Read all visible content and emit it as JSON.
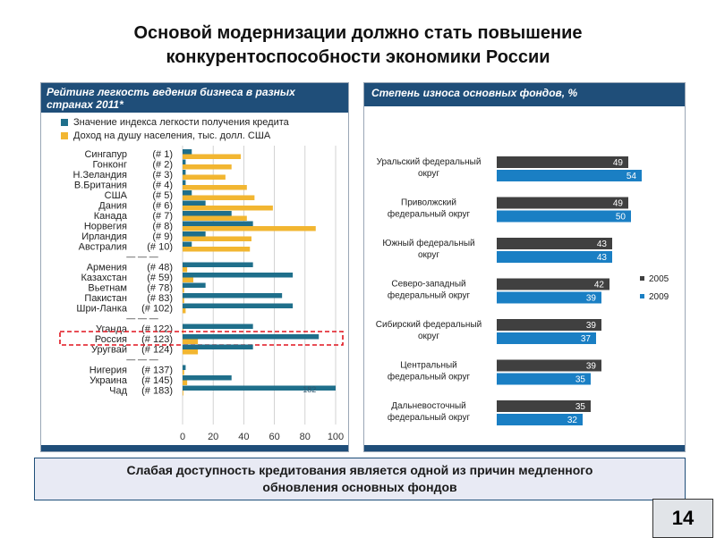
{
  "title_line1": "Основой модернизации должно стать повышение",
  "title_line2": "конкурентоспособности экономики России",
  "subtitle_line1": "Слабая доступность кредитования является одной из причин медленного",
  "subtitle_line2": "обновления основных фондов",
  "page_number": "14",
  "colors": {
    "blue": "#1f6f8b",
    "gold": "#f2b631",
    "dark": "#404040",
    "bright_blue": "#1a7fc4",
    "highlight": "#e0141e"
  },
  "chart_data": [
    {
      "type": "bar",
      "orientation": "horizontal",
      "title_line1": "Рейтинг легкость ведения бизнеса в разных",
      "title_line2": "странах 2011*",
      "xlim": [
        0,
        100
      ],
      "xticks": [
        "0",
        "20",
        "40",
        "60",
        "80",
        "100"
      ],
      "legend": [
        "Значение индекса легкости получения кредита",
        "Доход на душу населения, тыс. долл. США"
      ],
      "separator_label": "— — —",
      "groups": [
        [
          {
            "country": "Сингапур",
            "rank": "(# 1)",
            "credit": 6,
            "income": 38
          },
          {
            "country": "Гонконг",
            "rank": "(# 2)",
            "credit": 2,
            "income": 32
          },
          {
            "country": "Н.Зеландия",
            "rank": "(# 3)",
            "credit": 2,
            "income": 28
          },
          {
            "country": "В.Британия",
            "rank": "(# 4)",
            "credit": 2,
            "income": 42
          },
          {
            "country": "США",
            "rank": "(# 5)",
            "credit": 6,
            "income": 47
          },
          {
            "country": "Дания",
            "rank": "(# 6)",
            "credit": 15,
            "income": 59
          },
          {
            "country": "Канада",
            "rank": "(# 7)",
            "credit": 32,
            "income": 42
          },
          {
            "country": "Норвегия",
            "rank": "(# 8)",
            "credit": 46,
            "income": 87
          },
          {
            "country": "Ирландия",
            "rank": "(# 9)",
            "credit": 15,
            "income": 45
          },
          {
            "country": "Австралия",
            "rank": "(# 10)",
            "credit": 6,
            "income": 44
          }
        ],
        [
          {
            "country": "Армения",
            "rank": "(# 48)",
            "credit": 46,
            "income": 3
          },
          {
            "country": "Казахстан",
            "rank": "(# 59)",
            "credit": 72,
            "income": 7
          },
          {
            "country": "Вьетнам",
            "rank": "(# 78)",
            "credit": 15,
            "income": 1
          },
          {
            "country": "Пакистан",
            "rank": "(# 83)",
            "credit": 65,
            "income": 1
          },
          {
            "country": "Шри-Ланка",
            "rank": "(# 102)",
            "credit": 72,
            "income": 2
          }
        ],
        [
          {
            "country": "Уганда",
            "rank": "(# 122)",
            "credit": 46,
            "income": 0.5
          },
          {
            "country": "Россия",
            "rank": "(# 123)",
            "credit": 89,
            "income": 10,
            "highlight": true
          },
          {
            "country": "Уругвай",
            "rank": "(# 124)",
            "credit": 46,
            "income": 10
          }
        ],
        [
          {
            "country": "Нигерия",
            "rank": "(# 137)",
            "credit": 2,
            "income": 1
          },
          {
            "country": "Украина",
            "rank": "(# 145)",
            "credit": 32,
            "income": 3
          },
          {
            "country": "Чад",
            "rank": "(# 183)",
            "credit": 100,
            "income": 0.5
          }
        ]
      ],
      "annotation": "182"
    },
    {
      "type": "bar",
      "orientation": "horizontal",
      "title": "Степень износа основных фондов, %",
      "xlim": [
        0,
        60
      ],
      "series": [
        {
          "name": "2005"
        },
        {
          "name": "2009"
        }
      ],
      "categories": [
        {
          "line1": "Уральский федеральный",
          "line2": "округ",
          "v2005": 49,
          "v2009": 54
        },
        {
          "line1": "Приволжский",
          "line2": "федеральный округ",
          "v2005": 49,
          "v2009": 50
        },
        {
          "line1": "Южный федеральный",
          "line2": "округ",
          "v2005": 43,
          "v2009": 43
        },
        {
          "line1": "Северо-западный",
          "line2": "федеральный округ",
          "v2005": 42,
          "v2009": 39
        },
        {
          "line1": "Сибирский федеральный",
          "line2": "округ",
          "v2005": 39,
          "v2009": 37
        },
        {
          "line1": "Центральный",
          "line2": "федеральный округ",
          "v2005": 39,
          "v2009": 35
        },
        {
          "line1": "Дальневосточный",
          "line2": "федеральный округ",
          "v2005": 35,
          "v2009": 32
        }
      ]
    }
  ]
}
